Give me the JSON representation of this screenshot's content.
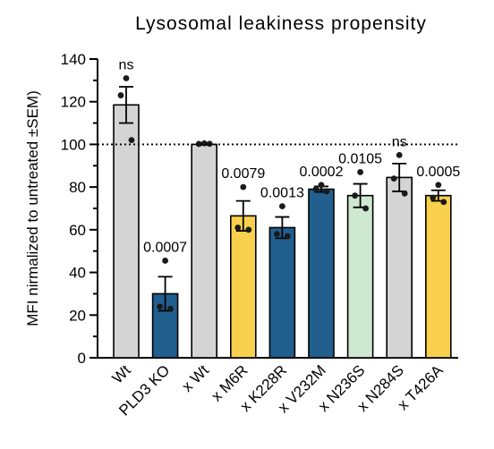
{
  "chart_data": {
    "type": "bar",
    "title": "Lysosomal leakiness propensity",
    "ylabel": "MFI nirmalized to untreated ±SEM)",
    "xlabel": "",
    "ylim": [
      0,
      140
    ],
    "yticks": [
      0,
      20,
      40,
      60,
      80,
      100,
      120,
      140
    ],
    "y_minor_step": 10,
    "reference_line": 100,
    "grid": false,
    "categories": [
      "Wt",
      "PLD3 KO",
      "x Wt",
      "x M6R",
      "x K228R",
      "x V232M",
      "x N236S",
      "x N284S",
      "x T426A"
    ],
    "values": [
      118.5,
      30,
      100,
      66.5,
      61,
      79,
      76,
      84.5,
      76
    ],
    "sem": [
      8.5,
      8,
      0.3,
      7,
      5,
      1.3,
      5.5,
      6.5,
      2.5
    ],
    "points": [
      [
        131,
        123,
        102
      ],
      [
        45.5,
        24,
        23
      ],
      [
        100.5,
        100.2,
        100.3
      ],
      [
        80,
        61,
        60
      ],
      [
        71,
        58,
        57
      ],
      [
        81,
        79,
        78
      ],
      [
        87,
        76,
        70
      ],
      [
        95,
        84,
        77
      ],
      [
        81,
        75,
        73
      ]
    ],
    "annotations": [
      "ns",
      "0.0007",
      "",
      "0.0079",
      "0.0013",
      "0.0002",
      "0.0105",
      "ns",
      "0.0005"
    ],
    "colors": [
      "#d4d4d4",
      "#215f8f",
      "#d4d4d4",
      "#f9d04d",
      "#215f8f",
      "#215f8f",
      "#cfe8d1",
      "#d4d4d4",
      "#f9d04d"
    ]
  }
}
